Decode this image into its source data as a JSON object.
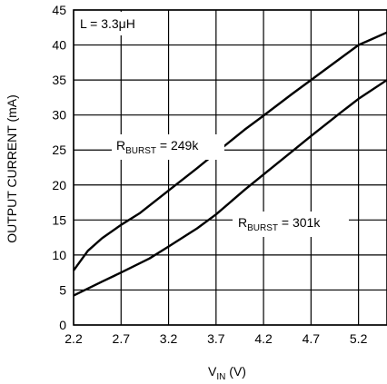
{
  "chart_data": {
    "type": "line",
    "xlabel": {
      "main": "V",
      "sub": "IN",
      "tail": " (V)"
    },
    "ylabel": "OUTPUT CURRENT (mA)",
    "xlim": [
      2.2,
      5.5
    ],
    "ylim": [
      0,
      45
    ],
    "x_ticks": [
      2.2,
      2.7,
      3.2,
      3.7,
      4.2,
      4.7,
      5.2
    ],
    "x_tick_labels": [
      "2.2",
      "2.7",
      "3.2",
      "3.7",
      "4.2",
      "4.7",
      "5.2"
    ],
    "y_ticks": [
      0,
      5,
      10,
      15,
      20,
      25,
      30,
      35,
      40,
      45
    ],
    "y_tick_labels": [
      "0",
      "5",
      "10",
      "15",
      "20",
      "25",
      "30",
      "35",
      "40",
      "45"
    ],
    "grid": true,
    "inset_label": "L = 3.3μH",
    "series": [
      {
        "label": {
          "main": "R",
          "sub": "BURST",
          "tail": " = 249k"
        },
        "x": [
          2.2,
          2.35,
          2.5,
          2.7,
          2.9,
          3.2,
          3.5,
          3.7,
          4.0,
          4.2,
          4.5,
          4.7,
          5.0,
          5.2,
          5.5
        ],
        "y": [
          7.8,
          10.6,
          12.4,
          14.3,
          16.0,
          19.2,
          22.4,
          24.6,
          27.9,
          29.9,
          33.0,
          35.0,
          38.0,
          40.0,
          41.8
        ]
      },
      {
        "label": {
          "main": "R",
          "sub": "BURST",
          "tail": " = 301k"
        },
        "x": [
          2.2,
          2.5,
          2.7,
          3.0,
          3.2,
          3.5,
          3.7,
          4.0,
          4.2,
          4.5,
          4.7,
          5.0,
          5.2,
          5.5
        ],
        "y": [
          4.2,
          6.2,
          7.5,
          9.5,
          11.2,
          13.8,
          15.8,
          19.3,
          21.5,
          24.8,
          27.0,
          30.2,
          32.3,
          35.0
        ]
      }
    ]
  }
}
